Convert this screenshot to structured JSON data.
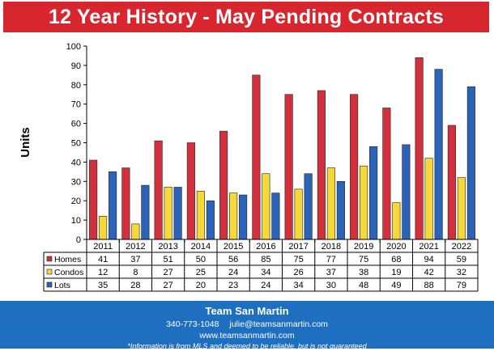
{
  "header": {
    "title": "12 Year History - May Pending Contracts"
  },
  "chart_data": {
    "type": "bar",
    "title": "12 Year History - May Pending Contracts",
    "xlabel": "",
    "ylabel": "Units",
    "ylim": [
      0,
      100
    ],
    "yticks": [
      0,
      10,
      20,
      30,
      40,
      50,
      60,
      70,
      80,
      90,
      100
    ],
    "grid": false,
    "legend": "table-below",
    "categories": [
      "2011",
      "2012",
      "2013",
      "2014",
      "2015",
      "2016",
      "2017",
      "2018",
      "2019",
      "2020",
      "2021",
      "2022"
    ],
    "series": [
      {
        "name": "Homes",
        "color": "#d2303c",
        "values": [
          41,
          37,
          51,
          50,
          56,
          85,
          75,
          77,
          75,
          68,
          94,
          59
        ]
      },
      {
        "name": "Condos",
        "color": "#f5d83a",
        "values": [
          12,
          8,
          27,
          25,
          24,
          34,
          26,
          37,
          38,
          19,
          42,
          32
        ]
      },
      {
        "name": "Lots",
        "color": "#2b63b8",
        "values": [
          35,
          28,
          27,
          20,
          23,
          24,
          34,
          30,
          48,
          49,
          88,
          79
        ]
      }
    ]
  },
  "footer": {
    "company": "Team San Martin",
    "phone": "340-773-1048",
    "email": "julie@teamsanmartin.com",
    "website": "www.teamsanmartin.com",
    "disclaimer": "*Information is from MLS and deemed to be reliable, but is not guaranteed"
  },
  "colors": {
    "title_bar": "#d8262f",
    "footer": "#1f6fc1"
  }
}
